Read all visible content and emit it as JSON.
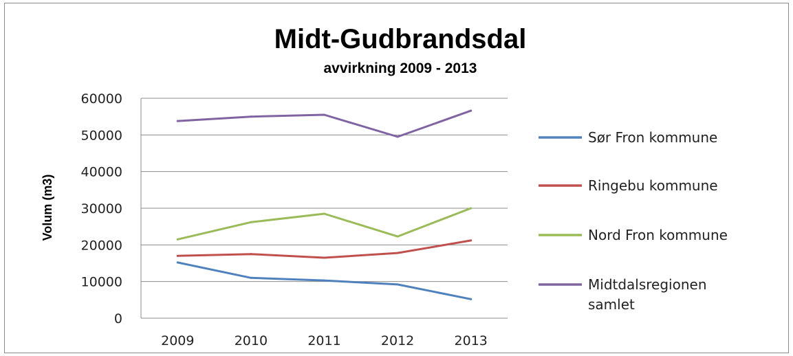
{
  "chart_data": {
    "type": "line",
    "title": "Midt-Gudbrandsdal",
    "subtitle": "avvirkning 2009 - 2013",
    "xlabel": "",
    "ylabel": "Volum (m3)",
    "ylim": [
      0,
      60000
    ],
    "yticks": [
      0,
      10000,
      20000,
      30000,
      40000,
      50000,
      60000
    ],
    "categories": [
      "2009",
      "2010",
      "2011",
      "2012",
      "2013"
    ],
    "grid": true,
    "legend_position": "right",
    "series": [
      {
        "name": "Sør Fron kommune",
        "color": "#4f81bd",
        "values": [
          15200,
          11000,
          10300,
          9200,
          5200
        ]
      },
      {
        "name": "Ringebu kommune",
        "color": "#c0504d",
        "values": [
          17000,
          17500,
          16500,
          17800,
          21200
        ]
      },
      {
        "name": "Nord Fron kommune",
        "color": "#9bbb59",
        "values": [
          21500,
          26200,
          28500,
          22300,
          30000
        ]
      },
      {
        "name": "Midtdalsregionen samlet",
        "color": "#8064a2",
        "values": [
          53800,
          55000,
          55500,
          49500,
          56600
        ]
      }
    ]
  }
}
